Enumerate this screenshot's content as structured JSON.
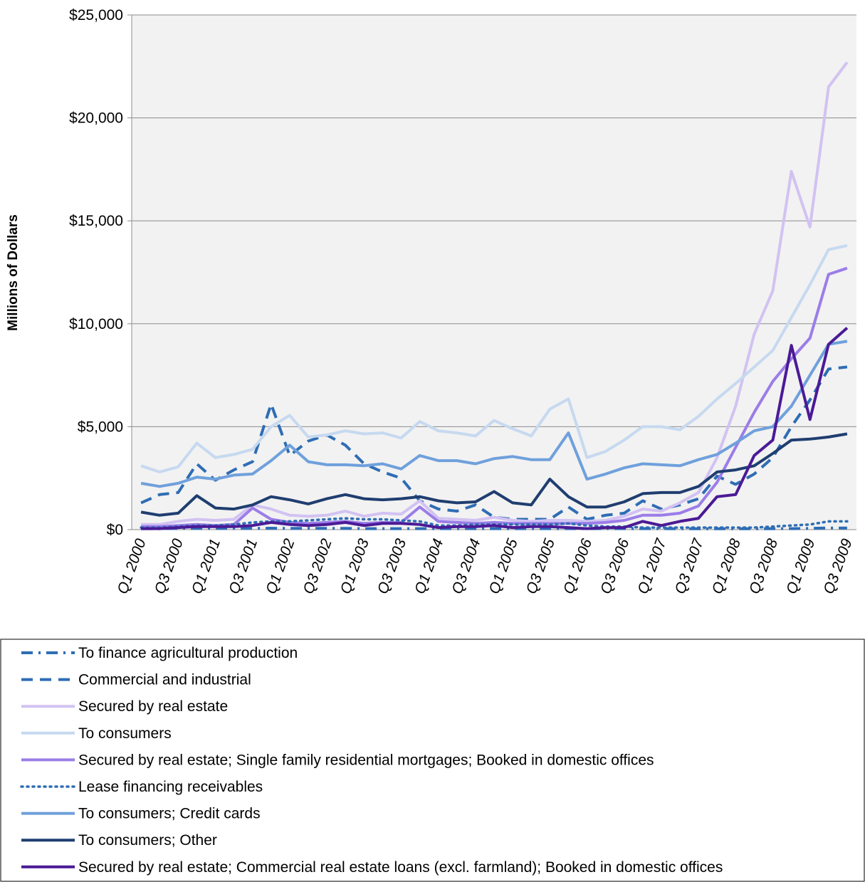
{
  "chart_data": {
    "type": "line",
    "y_label": "Millions of Dollars",
    "categories": [
      "Q1 2000",
      null,
      "Q3 2000",
      null,
      "Q1 2001",
      null,
      "Q3 2001",
      null,
      "Q1 2002",
      null,
      "Q3 2002",
      null,
      "Q1 2003",
      null,
      "Q3 2003",
      null,
      "Q1 2004",
      null,
      "Q3 2004",
      null,
      "Q1 2005",
      null,
      "Q3 2005",
      null,
      "Q1 2006",
      null,
      "Q3 2006",
      null,
      "Q1 2007",
      null,
      "Q3 2007",
      null,
      "Q1 2008",
      null,
      "Q3 2008",
      null,
      "Q1 2009",
      null,
      "Q3 2009"
    ],
    "ylim": [
      0,
      25000
    ],
    "yticks": [
      {
        "value": 0,
        "label": "$0"
      },
      {
        "value": 5000,
        "label": "$5,000"
      },
      {
        "value": 10000,
        "label": "$10,000"
      },
      {
        "value": 15000,
        "label": "$15,000"
      },
      {
        "value": 20000,
        "label": "$20,000"
      },
      {
        "value": 25000,
        "label": "$25,000"
      }
    ],
    "grid": true,
    "legend": "bottom",
    "series": [
      {
        "name": "To finance agricultural production",
        "color": "#2e6db4",
        "dash": "dashdot",
        "values": [
          50,
          50,
          60,
          60,
          60,
          60,
          60,
          70,
          60,
          60,
          60,
          60,
          50,
          50,
          50,
          50,
          50,
          50,
          50,
          50,
          50,
          50,
          50,
          50,
          50,
          50,
          50,
          50,
          50,
          40,
          40,
          40,
          40,
          40,
          50,
          50,
          60,
          80,
          80
        ]
      },
      {
        "name": "Commercial and industrial",
        "color": "#2e6db4",
        "dash": "dash",
        "values": [
          1300,
          1700,
          1800,
          3200,
          2400,
          2900,
          3300,
          6100,
          3600,
          4300,
          4600,
          4100,
          3200,
          2800,
          2500,
          1400,
          1000,
          900,
          1200,
          600,
          500,
          500,
          500,
          1100,
          500,
          700,
          800,
          1400,
          1000,
          1200,
          1500,
          2600,
          2200,
          2700,
          3500,
          5000,
          6300,
          7800,
          7900
        ]
      },
      {
        "name": "Secured by real estate",
        "color": "#d2c2f2",
        "dash": "solid",
        "values": [
          250,
          250,
          400,
          500,
          450,
          500,
          1200,
          1000,
          700,
          650,
          700,
          900,
          650,
          800,
          750,
          1400,
          550,
          500,
          450,
          600,
          450,
          400,
          450,
          450,
          400,
          450,
          650,
          1000,
          900,
          1300,
          1800,
          3500,
          6000,
          9500,
          11600,
          17400,
          14700,
          21500,
          22700
        ]
      },
      {
        "name": "To consumers",
        "color": "#c6d9f0",
        "dash": "solid",
        "values": [
          3100,
          2800,
          3050,
          4200,
          3500,
          3650,
          3900,
          5000,
          5550,
          4500,
          4600,
          4800,
          4650,
          4700,
          4450,
          5250,
          4800,
          4700,
          4550,
          5300,
          4900,
          4550,
          5850,
          6350,
          3500,
          3800,
          4350,
          5000,
          5000,
          4850,
          5500,
          6350,
          7100,
          7900,
          8700,
          10300,
          11900,
          13600,
          13800
        ]
      },
      {
        "name": "Secured by real estate; Single family residential mortgages; Booked in domestic offices",
        "color": "#9b7de8",
        "dash": "solid",
        "values": [
          150,
          150,
          200,
          250,
          200,
          250,
          1050,
          500,
          350,
          300,
          350,
          400,
          300,
          350,
          350,
          1100,
          400,
          350,
          300,
          350,
          300,
          300,
          300,
          300,
          300,
          350,
          450,
          700,
          700,
          800,
          1150,
          2300,
          4000,
          5700,
          7200,
          8300,
          9300,
          12400,
          12700
        ]
      },
      {
        "name": "Lease financing receivables",
        "color": "#2e6db4",
        "dash": "dot",
        "values": [
          100,
          100,
          150,
          200,
          200,
          250,
          350,
          400,
          400,
          450,
          500,
          550,
          500,
          500,
          450,
          400,
          200,
          200,
          250,
          250,
          250,
          250,
          250,
          300,
          200,
          150,
          150,
          100,
          100,
          100,
          100,
          100,
          100,
          100,
          150,
          200,
          250,
          400,
          400
        ]
      },
      {
        "name": "To consumers; Credit cards",
        "color": "#6fa0dc",
        "dash": "solid",
        "values": [
          2250,
          2100,
          2250,
          2550,
          2450,
          2650,
          2700,
          3350,
          4100,
          3300,
          3150,
          3150,
          3100,
          3200,
          2950,
          3600,
          3350,
          3350,
          3200,
          3450,
          3550,
          3400,
          3400,
          4700,
          2450,
          2700,
          3000,
          3200,
          3150,
          3100,
          3400,
          3650,
          4200,
          4800,
          5000,
          6000,
          7500,
          9000,
          9150
        ]
      },
      {
        "name": "To consumers; Other",
        "color": "#1f3e70",
        "dash": "solid",
        "values": [
          850,
          700,
          800,
          1650,
          1050,
          1000,
          1200,
          1600,
          1450,
          1250,
          1500,
          1700,
          1500,
          1450,
          1500,
          1600,
          1400,
          1300,
          1350,
          1850,
          1300,
          1200,
          2450,
          1600,
          1100,
          1100,
          1350,
          1750,
          1800,
          1800,
          2100,
          2800,
          2900,
          3100,
          3700,
          4350,
          4400,
          4500,
          4650
        ]
      },
      {
        "name": "Secured by real estate; Commercial real estate loans (excl. farmland); Booked in domestic offices",
        "color": "#4b1a96",
        "dash": "solid",
        "values": [
          50,
          50,
          100,
          150,
          150,
          150,
          200,
          350,
          250,
          200,
          250,
          350,
          200,
          300,
          300,
          250,
          100,
          150,
          150,
          200,
          100,
          150,
          150,
          100,
          50,
          100,
          100,
          400,
          200,
          400,
          550,
          1600,
          1700,
          3600,
          4350,
          8950,
          5350,
          9000,
          9800
        ]
      }
    ]
  }
}
